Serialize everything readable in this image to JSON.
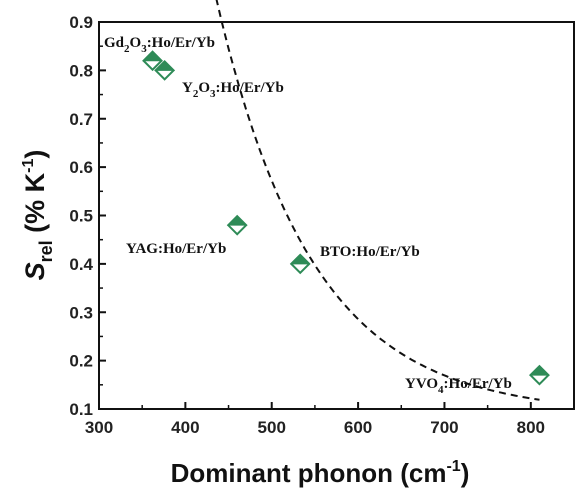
{
  "chart_data": {
    "type": "scatter",
    "xlabel": "Dominant phonon (cm-1)",
    "xlabel_main": "Dominant phonon (cm",
    "xlabel_sup": "-1",
    "xlabel_close": ")",
    "ylabel_main": "S",
    "ylabel_sub": "rel",
    "ylabel_unit": " (% K",
    "ylabel_sup": "-1",
    "ylabel_close": ")",
    "xlim": [
      300,
      850
    ],
    "ylim": [
      0.1,
      0.9
    ],
    "xticks": [
      300,
      400,
      500,
      600,
      700,
      800
    ],
    "yticks": [
      0.1,
      0.2,
      0.3,
      0.4,
      0.5,
      0.6,
      0.7,
      0.8,
      0.9
    ],
    "marker_color": "#2e8b57",
    "fit_line": "dashed",
    "points": [
      {
        "x": 362,
        "y": 0.82,
        "label": "Gd",
        "sub": "2",
        "label2": "O",
        "sub2": "3",
        "label3": ":Ho/Er/Yb"
      },
      {
        "x": 376,
        "y": 0.8,
        "label": "Y",
        "sub": "2",
        "label2": "O",
        "sub2": "3",
        "label3": ":Ho/Er/Yb"
      },
      {
        "x": 460,
        "y": 0.48,
        "label": "YAG:Ho/Er/Yb",
        "sub": "",
        "label2": "",
        "sub2": "",
        "label3": ""
      },
      {
        "x": 533,
        "y": 0.4,
        "label": "BTO:Ho/Er/Yb",
        "sub": "",
        "label2": "",
        "sub2": "",
        "label3": ""
      },
      {
        "x": 810,
        "y": 0.17,
        "label": "YVO",
        "sub": "4",
        "label2": ":Ho/Er/Yb",
        "sub2": "",
        "label3": ""
      }
    ]
  }
}
